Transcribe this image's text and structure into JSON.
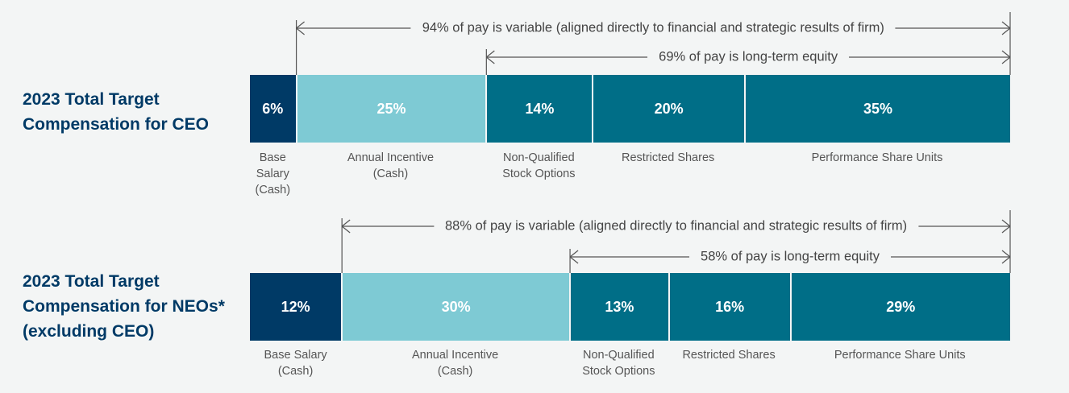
{
  "chart_data": [
    {
      "type": "bar",
      "stacked": true,
      "orientation": "horizontal",
      "title": "2023 Total Target Compensation for CEO",
      "categories": [
        "Base Salary (Cash)",
        "Annual Incentive (Cash)",
        "Non-Qualified Stock Options",
        "Restricted Shares",
        "Performance Share Units"
      ],
      "labels": [
        [
          "Base",
          "Salary",
          "(Cash)"
        ],
        [
          "Annual Incentive",
          "(Cash)"
        ],
        [
          "Non-Qualified",
          "Stock Options"
        ],
        [
          "Restricted Shares"
        ],
        [
          "Performance Share Units"
        ]
      ],
      "values": [
        6,
        25,
        14,
        20,
        35
      ],
      "value_labels": [
        "6%",
        "25%",
        "14%",
        "20%",
        "35%"
      ],
      "colors": [
        "#003a66",
        "#7ecad4",
        "#006e87",
        "#006e87",
        "#006e87"
      ],
      "annotations": [
        {
          "text": "94% of pay is variable (aligned directly to financial and strategic results of firm)",
          "from_segment": 1
        },
        {
          "text": "69% of pay is long-term equity",
          "from_segment": 2
        }
      ]
    },
    {
      "type": "bar",
      "stacked": true,
      "orientation": "horizontal",
      "title": "2023 Total Target Compensation for NEOs* (excluding CEO)",
      "title_lines": [
        "2023 Total Target",
        "Compensation for NEOs*",
        "(excluding CEO)"
      ],
      "categories": [
        "Base Salary (Cash)",
        "Annual Incentive (Cash)",
        "Non-Qualified Stock Options",
        "Restricted Shares",
        "Performance Share Units"
      ],
      "labels": [
        [
          "Base Salary",
          "(Cash)"
        ],
        [
          "Annual Incentive",
          "(Cash)"
        ],
        [
          "Non-Qualified",
          "Stock Options"
        ],
        [
          "Restricted Shares"
        ],
        [
          "Performance Share Units"
        ]
      ],
      "values": [
        12,
        30,
        13,
        16,
        29
      ],
      "value_labels": [
        "12%",
        "30%",
        "13%",
        "16%",
        "29%"
      ],
      "colors": [
        "#003a66",
        "#7ecad4",
        "#006e87",
        "#006e87",
        "#006e87"
      ],
      "annotations": [
        {
          "text": "88% of pay is variable (aligned directly to financial and strategic results of firm)",
          "from_segment": 1
        },
        {
          "text": "58% of pay is long-term equity",
          "from_segment": 2
        }
      ]
    }
  ],
  "titles": {
    "ceo": [
      "2023 Total Target",
      "Compensation for CEO"
    ],
    "neo": [
      "2023 Total Target",
      "Compensation for NEOs*",
      "(excluding CEO)"
    ]
  }
}
